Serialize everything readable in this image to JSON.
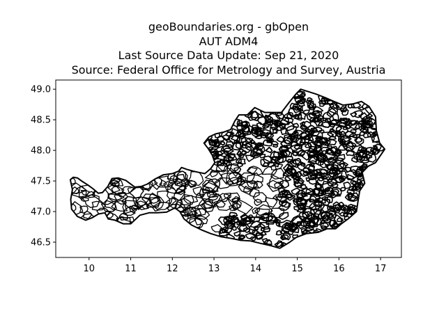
{
  "title_lines": [
    "geoBoundaries.org - gbOpen",
    "AUT ADM4",
    "Last Source Data Update: Sep 21, 2020",
    "Source: Federal Office for Metrology and Survey, Austria"
  ],
  "chart_data": {
    "type": "map",
    "title": "geoBoundaries.org - gbOpen AUT ADM4 Last Source Data Update: Sep 21, 2020 Source: Federal Office for Metrology and Survey, Austria",
    "xlim": [
      9.2,
      17.5
    ],
    "ylim": [
      46.25,
      49.15
    ],
    "x_ticks": [
      10,
      11,
      12,
      13,
      14,
      15,
      16,
      17
    ],
    "y_ticks": [
      46.5,
      47.0,
      47.5,
      48.0,
      48.5,
      49.0
    ],
    "x_tick_labels": [
      "10",
      "11",
      "12",
      "13",
      "14",
      "15",
      "16",
      "17"
    ],
    "y_tick_labels": [
      "46.5",
      "47.0",
      "47.5",
      "48.0",
      "48.5",
      "49.0"
    ],
    "grid": false,
    "colors": {
      "boundary": "#000000",
      "fill": "#ffffff",
      "axes": "#000000"
    },
    "outline": [
      [
        9.55,
        47.52
      ],
      [
        9.62,
        47.56
      ],
      [
        9.72,
        47.55
      ],
      [
        9.82,
        47.5
      ],
      [
        9.98,
        47.43
      ],
      [
        10.1,
        47.37
      ],
      [
        10.22,
        47.3
      ],
      [
        10.32,
        47.31
      ],
      [
        10.45,
        47.41
      ],
      [
        10.55,
        47.54
      ],
      [
        10.7,
        47.55
      ],
      [
        10.88,
        47.51
      ],
      [
        11.1,
        47.4
      ],
      [
        11.25,
        47.41
      ],
      [
        11.4,
        47.45
      ],
      [
        11.58,
        47.53
      ],
      [
        11.78,
        47.6
      ],
      [
        12.0,
        47.62
      ],
      [
        12.15,
        47.66
      ],
      [
        12.22,
        47.72
      ],
      [
        12.35,
        47.69
      ],
      [
        12.5,
        47.66
      ],
      [
        12.64,
        47.64
      ],
      [
        12.78,
        47.62
      ],
      [
        12.92,
        47.7
      ],
      [
        13.02,
        47.8
      ],
      [
        12.96,
        47.92
      ],
      [
        12.86,
        48.03
      ],
      [
        12.76,
        48.12
      ],
      [
        12.88,
        48.22
      ],
      [
        13.04,
        48.27
      ],
      [
        13.24,
        48.3
      ],
      [
        13.4,
        48.34
      ],
      [
        13.5,
        48.48
      ],
      [
        13.6,
        48.58
      ],
      [
        13.8,
        48.58
      ],
      [
        13.98,
        48.7
      ],
      [
        14.22,
        48.62
      ],
      [
        14.42,
        48.62
      ],
      [
        14.62,
        48.62
      ],
      [
        14.8,
        48.78
      ],
      [
        14.98,
        48.93
      ],
      [
        15.08,
        49.0
      ],
      [
        15.22,
        48.97
      ],
      [
        15.45,
        48.92
      ],
      [
        15.68,
        48.86
      ],
      [
        15.88,
        48.8
      ],
      [
        16.1,
        48.74
      ],
      [
        16.34,
        48.76
      ],
      [
        16.54,
        48.8
      ],
      [
        16.72,
        48.72
      ],
      [
        16.88,
        48.55
      ],
      [
        16.9,
        48.32
      ],
      [
        16.98,
        48.12
      ],
      [
        17.1,
        48.02
      ],
      [
        17.0,
        47.92
      ],
      [
        16.88,
        47.8
      ],
      [
        16.7,
        47.74
      ],
      [
        16.56,
        47.64
      ],
      [
        16.62,
        47.46
      ],
      [
        16.5,
        47.34
      ],
      [
        16.46,
        47.18
      ],
      [
        16.42,
        47.0
      ],
      [
        16.22,
        46.88
      ],
      [
        16.06,
        46.8
      ],
      [
        15.92,
        46.72
      ],
      [
        15.72,
        46.72
      ],
      [
        15.5,
        46.66
      ],
      [
        15.22,
        46.64
      ],
      [
        14.98,
        46.58
      ],
      [
        14.82,
        46.5
      ],
      [
        14.58,
        46.4
      ],
      [
        14.38,
        46.44
      ],
      [
        14.12,
        46.48
      ],
      [
        13.88,
        46.52
      ],
      [
        13.64,
        46.53
      ],
      [
        13.42,
        46.56
      ],
      [
        13.16,
        46.59
      ],
      [
        12.92,
        46.64
      ],
      [
        12.7,
        46.7
      ],
      [
        12.46,
        46.78
      ],
      [
        12.28,
        46.88
      ],
      [
        12.18,
        47.0
      ],
      [
        12.06,
        47.06
      ],
      [
        11.86,
        46.99
      ],
      [
        11.64,
        46.98
      ],
      [
        11.44,
        46.98
      ],
      [
        11.22,
        46.94
      ],
      [
        11.0,
        46.8
      ],
      [
        10.82,
        46.8
      ],
      [
        10.62,
        46.86
      ],
      [
        10.46,
        46.88
      ],
      [
        10.38,
        46.98
      ],
      [
        10.22,
        46.96
      ],
      [
        10.08,
        46.9
      ],
      [
        9.92,
        46.86
      ],
      [
        9.72,
        46.92
      ],
      [
        9.58,
        47.04
      ],
      [
        9.56,
        47.2
      ],
      [
        9.6,
        47.36
      ]
    ]
  }
}
